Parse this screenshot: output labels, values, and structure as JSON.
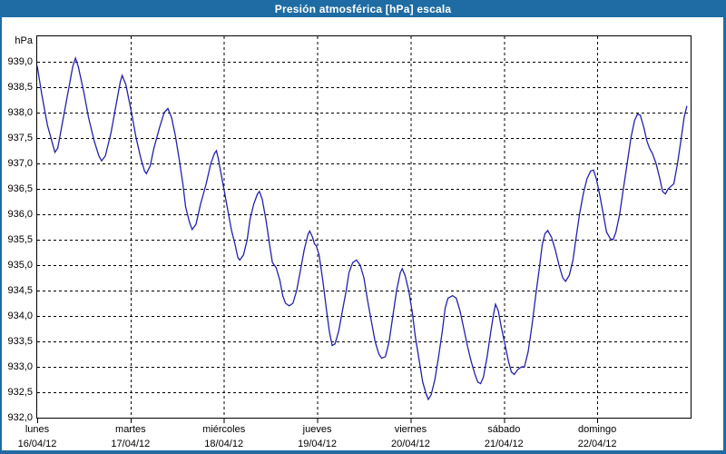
{
  "window": {
    "title": "Presión atmosférica [hPa] escala"
  },
  "colors": {
    "frame": "#1E6CA3",
    "title_text": "#FFFFFF",
    "plot_background": "#FFFFFF",
    "grid": "#000000",
    "axis_text": "#000000",
    "line": "#2222AE"
  },
  "chart_data": {
    "type": "line",
    "title": "Presión atmosférica [hPa] escala",
    "ylabel": "hPa",
    "ylim": [
      932.0,
      939.5
    ],
    "xlim_days": [
      0,
      7
    ],
    "grid_style": "dashed",
    "legend": "none",
    "ytick_values": [
      939.0,
      938.5,
      938.0,
      937.5,
      937.0,
      936.5,
      936.0,
      935.5,
      935.0,
      934.5,
      934.0,
      933.5,
      933.0,
      932.5,
      932.0
    ],
    "ytick_labels": [
      "939,0",
      "938,5",
      "938,0",
      "937,5",
      "937,0",
      "936,5",
      "936,0",
      "935,5",
      "935,0",
      "934,5",
      "934,0",
      "933,5",
      "933,0",
      "932,5",
      "932,0"
    ],
    "x_categories": [
      {
        "day": "lunes",
        "date": "16/04/12"
      },
      {
        "day": "martes",
        "date": "17/04/12"
      },
      {
        "day": "miércoles",
        "date": "18/04/12"
      },
      {
        "day": "jueves",
        "date": "19/04/12"
      },
      {
        "day": "viernes",
        "date": "20/04/12"
      },
      {
        "day": "sábado",
        "date": "21/04/12"
      },
      {
        "day": "domingo",
        "date": "22/04/12"
      }
    ],
    "series": [
      {
        "name": "presión atmosférica",
        "color": "#2222AE",
        "points": [
          [
            0.0,
            938.92
          ],
          [
            0.05,
            938.35
          ],
          [
            0.11,
            937.75
          ],
          [
            0.17,
            937.35
          ],
          [
            0.19,
            937.22
          ],
          [
            0.22,
            937.3
          ],
          [
            0.28,
            937.9
          ],
          [
            0.34,
            938.5
          ],
          [
            0.38,
            938.9
          ],
          [
            0.41,
            939.07
          ],
          [
            0.44,
            938.9
          ],
          [
            0.5,
            938.4
          ],
          [
            0.55,
            937.9
          ],
          [
            0.61,
            937.45
          ],
          [
            0.66,
            937.15
          ],
          [
            0.69,
            937.05
          ],
          [
            0.73,
            937.15
          ],
          [
            0.79,
            937.6
          ],
          [
            0.85,
            938.2
          ],
          [
            0.89,
            938.6
          ],
          [
            0.91,
            938.73
          ],
          [
            0.95,
            938.55
          ],
          [
            1.01,
            938.0
          ],
          [
            1.06,
            937.5
          ],
          [
            1.11,
            937.1
          ],
          [
            1.15,
            936.85
          ],
          [
            1.17,
            936.8
          ],
          [
            1.21,
            936.95
          ],
          [
            1.25,
            937.3
          ],
          [
            1.31,
            937.7
          ],
          [
            1.36,
            938.0
          ],
          [
            1.4,
            938.08
          ],
          [
            1.44,
            937.9
          ],
          [
            1.48,
            937.55
          ],
          [
            1.52,
            937.1
          ],
          [
            1.56,
            936.6
          ],
          [
            1.59,
            936.15
          ],
          [
            1.63,
            935.85
          ],
          [
            1.66,
            935.7
          ],
          [
            1.7,
            935.8
          ],
          [
            1.75,
            936.2
          ],
          [
            1.81,
            936.6
          ],
          [
            1.86,
            937.0
          ],
          [
            1.9,
            937.2
          ],
          [
            1.92,
            937.25
          ],
          [
            1.94,
            937.1
          ],
          [
            1.97,
            936.8
          ],
          [
            2.0,
            936.5
          ],
          [
            2.04,
            936.1
          ],
          [
            2.08,
            935.7
          ],
          [
            2.12,
            935.4
          ],
          [
            2.15,
            935.15
          ],
          [
            2.17,
            935.1
          ],
          [
            2.21,
            935.2
          ],
          [
            2.25,
            935.5
          ],
          [
            2.28,
            935.9
          ],
          [
            2.32,
            936.2
          ],
          [
            2.36,
            936.4
          ],
          [
            2.38,
            936.45
          ],
          [
            2.41,
            936.3
          ],
          [
            2.45,
            935.9
          ],
          [
            2.49,
            935.4
          ],
          [
            2.52,
            935.05
          ],
          [
            2.56,
            934.95
          ],
          [
            2.6,
            934.7
          ],
          [
            2.63,
            934.4
          ],
          [
            2.66,
            934.25
          ],
          [
            2.7,
            934.2
          ],
          [
            2.74,
            934.25
          ],
          [
            2.78,
            934.5
          ],
          [
            2.82,
            934.9
          ],
          [
            2.86,
            935.3
          ],
          [
            2.9,
            935.6
          ],
          [
            2.92,
            935.67
          ],
          [
            2.95,
            935.55
          ],
          [
            2.97,
            935.42
          ],
          [
            2.99,
            935.38
          ],
          [
            3.02,
            935.2
          ],
          [
            3.06,
            934.7
          ],
          [
            3.1,
            934.1
          ],
          [
            3.13,
            933.7
          ],
          [
            3.16,
            933.42
          ],
          [
            3.19,
            933.45
          ],
          [
            3.23,
            933.7
          ],
          [
            3.27,
            934.1
          ],
          [
            3.31,
            934.5
          ],
          [
            3.34,
            934.85
          ],
          [
            3.38,
            935.05
          ],
          [
            3.42,
            935.1
          ],
          [
            3.46,
            935.0
          ],
          [
            3.5,
            934.75
          ],
          [
            3.54,
            934.3
          ],
          [
            3.58,
            933.9
          ],
          [
            3.62,
            933.5
          ],
          [
            3.66,
            933.25
          ],
          [
            3.69,
            933.17
          ],
          [
            3.73,
            933.2
          ],
          [
            3.77,
            933.5
          ],
          [
            3.81,
            934.0
          ],
          [
            3.85,
            934.5
          ],
          [
            3.89,
            934.85
          ],
          [
            3.91,
            934.93
          ],
          [
            3.94,
            934.8
          ],
          [
            3.98,
            934.5
          ],
          [
            4.02,
            934.05
          ],
          [
            4.05,
            933.6
          ],
          [
            4.09,
            933.15
          ],
          [
            4.13,
            932.7
          ],
          [
            4.17,
            932.45
          ],
          [
            4.19,
            932.36
          ],
          [
            4.22,
            932.45
          ],
          [
            4.26,
            932.75
          ],
          [
            4.3,
            933.2
          ],
          [
            4.34,
            933.7
          ],
          [
            4.37,
            934.15
          ],
          [
            4.4,
            934.35
          ],
          [
            4.45,
            934.4
          ],
          [
            4.49,
            934.35
          ],
          [
            4.53,
            934.1
          ],
          [
            4.57,
            933.75
          ],
          [
            4.61,
            933.4
          ],
          [
            4.65,
            933.1
          ],
          [
            4.69,
            932.85
          ],
          [
            4.72,
            932.7
          ],
          [
            4.75,
            932.67
          ],
          [
            4.78,
            932.8
          ],
          [
            4.82,
            933.2
          ],
          [
            4.86,
            933.7
          ],
          [
            4.89,
            934.05
          ],
          [
            4.91,
            934.23
          ],
          [
            4.94,
            934.1
          ],
          [
            4.97,
            933.8
          ],
          [
            5.01,
            933.45
          ],
          [
            5.05,
            933.1
          ],
          [
            5.08,
            932.9
          ],
          [
            5.11,
            932.85
          ],
          [
            5.15,
            932.95
          ],
          [
            5.19,
            933.0
          ],
          [
            5.22,
            933.0
          ],
          [
            5.26,
            933.3
          ],
          [
            5.3,
            933.8
          ],
          [
            5.34,
            934.4
          ],
          [
            5.38,
            934.95
          ],
          [
            5.41,
            935.4
          ],
          [
            5.44,
            935.62
          ],
          [
            5.47,
            935.68
          ],
          [
            5.51,
            935.55
          ],
          [
            5.55,
            935.3
          ],
          [
            5.59,
            935.0
          ],
          [
            5.63,
            934.75
          ],
          [
            5.66,
            934.68
          ],
          [
            5.7,
            934.8
          ],
          [
            5.74,
            935.1
          ],
          [
            5.77,
            935.5
          ],
          [
            5.81,
            936.0
          ],
          [
            5.85,
            936.4
          ],
          [
            5.89,
            936.7
          ],
          [
            5.93,
            936.85
          ],
          [
            5.96,
            936.87
          ],
          [
            5.99,
            936.7
          ],
          [
            6.03,
            936.35
          ],
          [
            6.07,
            935.95
          ],
          [
            6.1,
            935.65
          ],
          [
            6.14,
            935.52
          ],
          [
            6.17,
            935.5
          ],
          [
            6.2,
            935.65
          ],
          [
            6.24,
            936.0
          ],
          [
            6.28,
            936.5
          ],
          [
            6.32,
            937.0
          ],
          [
            6.36,
            937.5
          ],
          [
            6.4,
            937.85
          ],
          [
            6.43,
            937.97
          ],
          [
            6.46,
            937.95
          ],
          [
            6.5,
            937.7
          ],
          [
            6.53,
            937.45
          ],
          [
            6.56,
            937.3
          ],
          [
            6.59,
            937.2
          ],
          [
            6.63,
            937.0
          ],
          [
            6.67,
            936.7
          ],
          [
            6.7,
            936.45
          ],
          [
            6.73,
            936.4
          ],
          [
            6.76,
            936.5
          ],
          [
            6.79,
            936.55
          ],
          [
            6.82,
            936.6
          ],
          [
            6.86,
            937.0
          ],
          [
            6.9,
            937.5
          ],
          [
            6.93,
            937.9
          ],
          [
            6.96,
            938.13
          ]
        ]
      }
    ]
  }
}
